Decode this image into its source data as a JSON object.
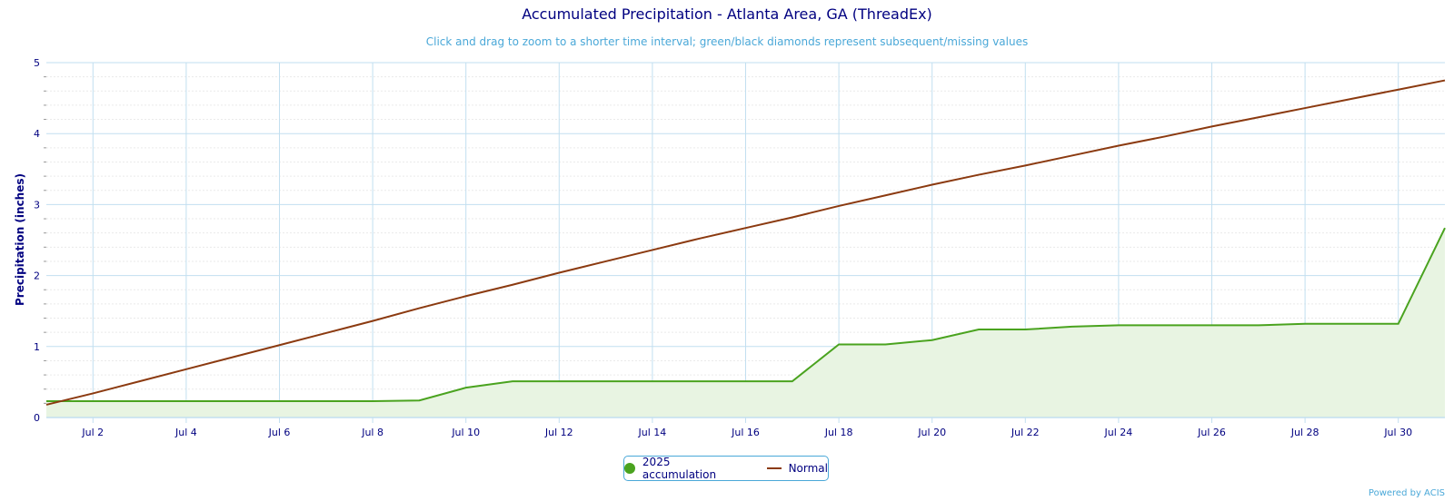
{
  "colors": {
    "accumulation": "#4aa31f",
    "accumulation_fill": "#e8f4e2",
    "normal": "#8b3a10",
    "grid_major": "#c2dff0",
    "grid_minor": "#eaeaea",
    "axis_text": "#000080",
    "subtitle": "#4aa8d8"
  },
  "chart_data": {
    "type": "line",
    "title": "Accumulated Precipitation - Atlanta Area, GA (ThreadEx)",
    "subtitle": "Click and drag to zoom to a shorter time interval; green/black diamonds represent subsequent/missing values",
    "xlabel": "",
    "ylabel": "Precipitation (inches)",
    "x": [
      1,
      2,
      3,
      4,
      5,
      6,
      7,
      8,
      9,
      10,
      11,
      12,
      13,
      14,
      15,
      16,
      17,
      18,
      19,
      20,
      21,
      22,
      23,
      24,
      25,
      26,
      27,
      28,
      29,
      30,
      31
    ],
    "xlim": [
      1,
      31
    ],
    "x_ticks": [
      2,
      4,
      6,
      8,
      10,
      12,
      14,
      16,
      18,
      20,
      22,
      24,
      26,
      28,
      30
    ],
    "x_tick_labels": [
      "Jul 2",
      "Jul 4",
      "Jul 6",
      "Jul 8",
      "Jul 10",
      "Jul 12",
      "Jul 14",
      "Jul 16",
      "Jul 18",
      "Jul 20",
      "Jul 22",
      "Jul 24",
      "Jul 26",
      "Jul 28",
      "Jul 30"
    ],
    "ylim": [
      0,
      5
    ],
    "y_ticks": [
      0,
      1,
      2,
      3,
      4,
      5
    ],
    "y_tick_labels": [
      "0",
      "1",
      "2",
      "3",
      "4",
      "5"
    ],
    "grid": true,
    "legend_position": "bottom-center",
    "series": [
      {
        "name": "2025 accumulation",
        "style": "area",
        "values": [
          0.23,
          0.23,
          0.23,
          0.23,
          0.23,
          0.23,
          0.23,
          0.23,
          0.24,
          0.42,
          0.51,
          0.51,
          0.51,
          0.51,
          0.51,
          0.51,
          0.51,
          1.03,
          1.03,
          1.09,
          1.24,
          1.24,
          1.28,
          1.3,
          1.3,
          1.3,
          1.3,
          1.32,
          1.32,
          1.32,
          2.67
        ]
      },
      {
        "name": "Normal",
        "style": "line",
        "values": [
          0.18,
          0.34,
          0.51,
          0.68,
          0.85,
          1.02,
          1.19,
          1.36,
          1.54,
          1.71,
          1.87,
          2.04,
          2.2,
          2.36,
          2.52,
          2.67,
          2.82,
          2.98,
          3.13,
          3.28,
          3.42,
          3.55,
          3.69,
          3.83,
          3.96,
          4.1,
          4.23,
          4.36,
          4.49,
          4.62,
          4.75
        ]
      }
    ]
  },
  "legend": {
    "accumulation_label": "2025 accumulation",
    "normal_label": "Normal"
  },
  "credits": "Powered by ACIS"
}
